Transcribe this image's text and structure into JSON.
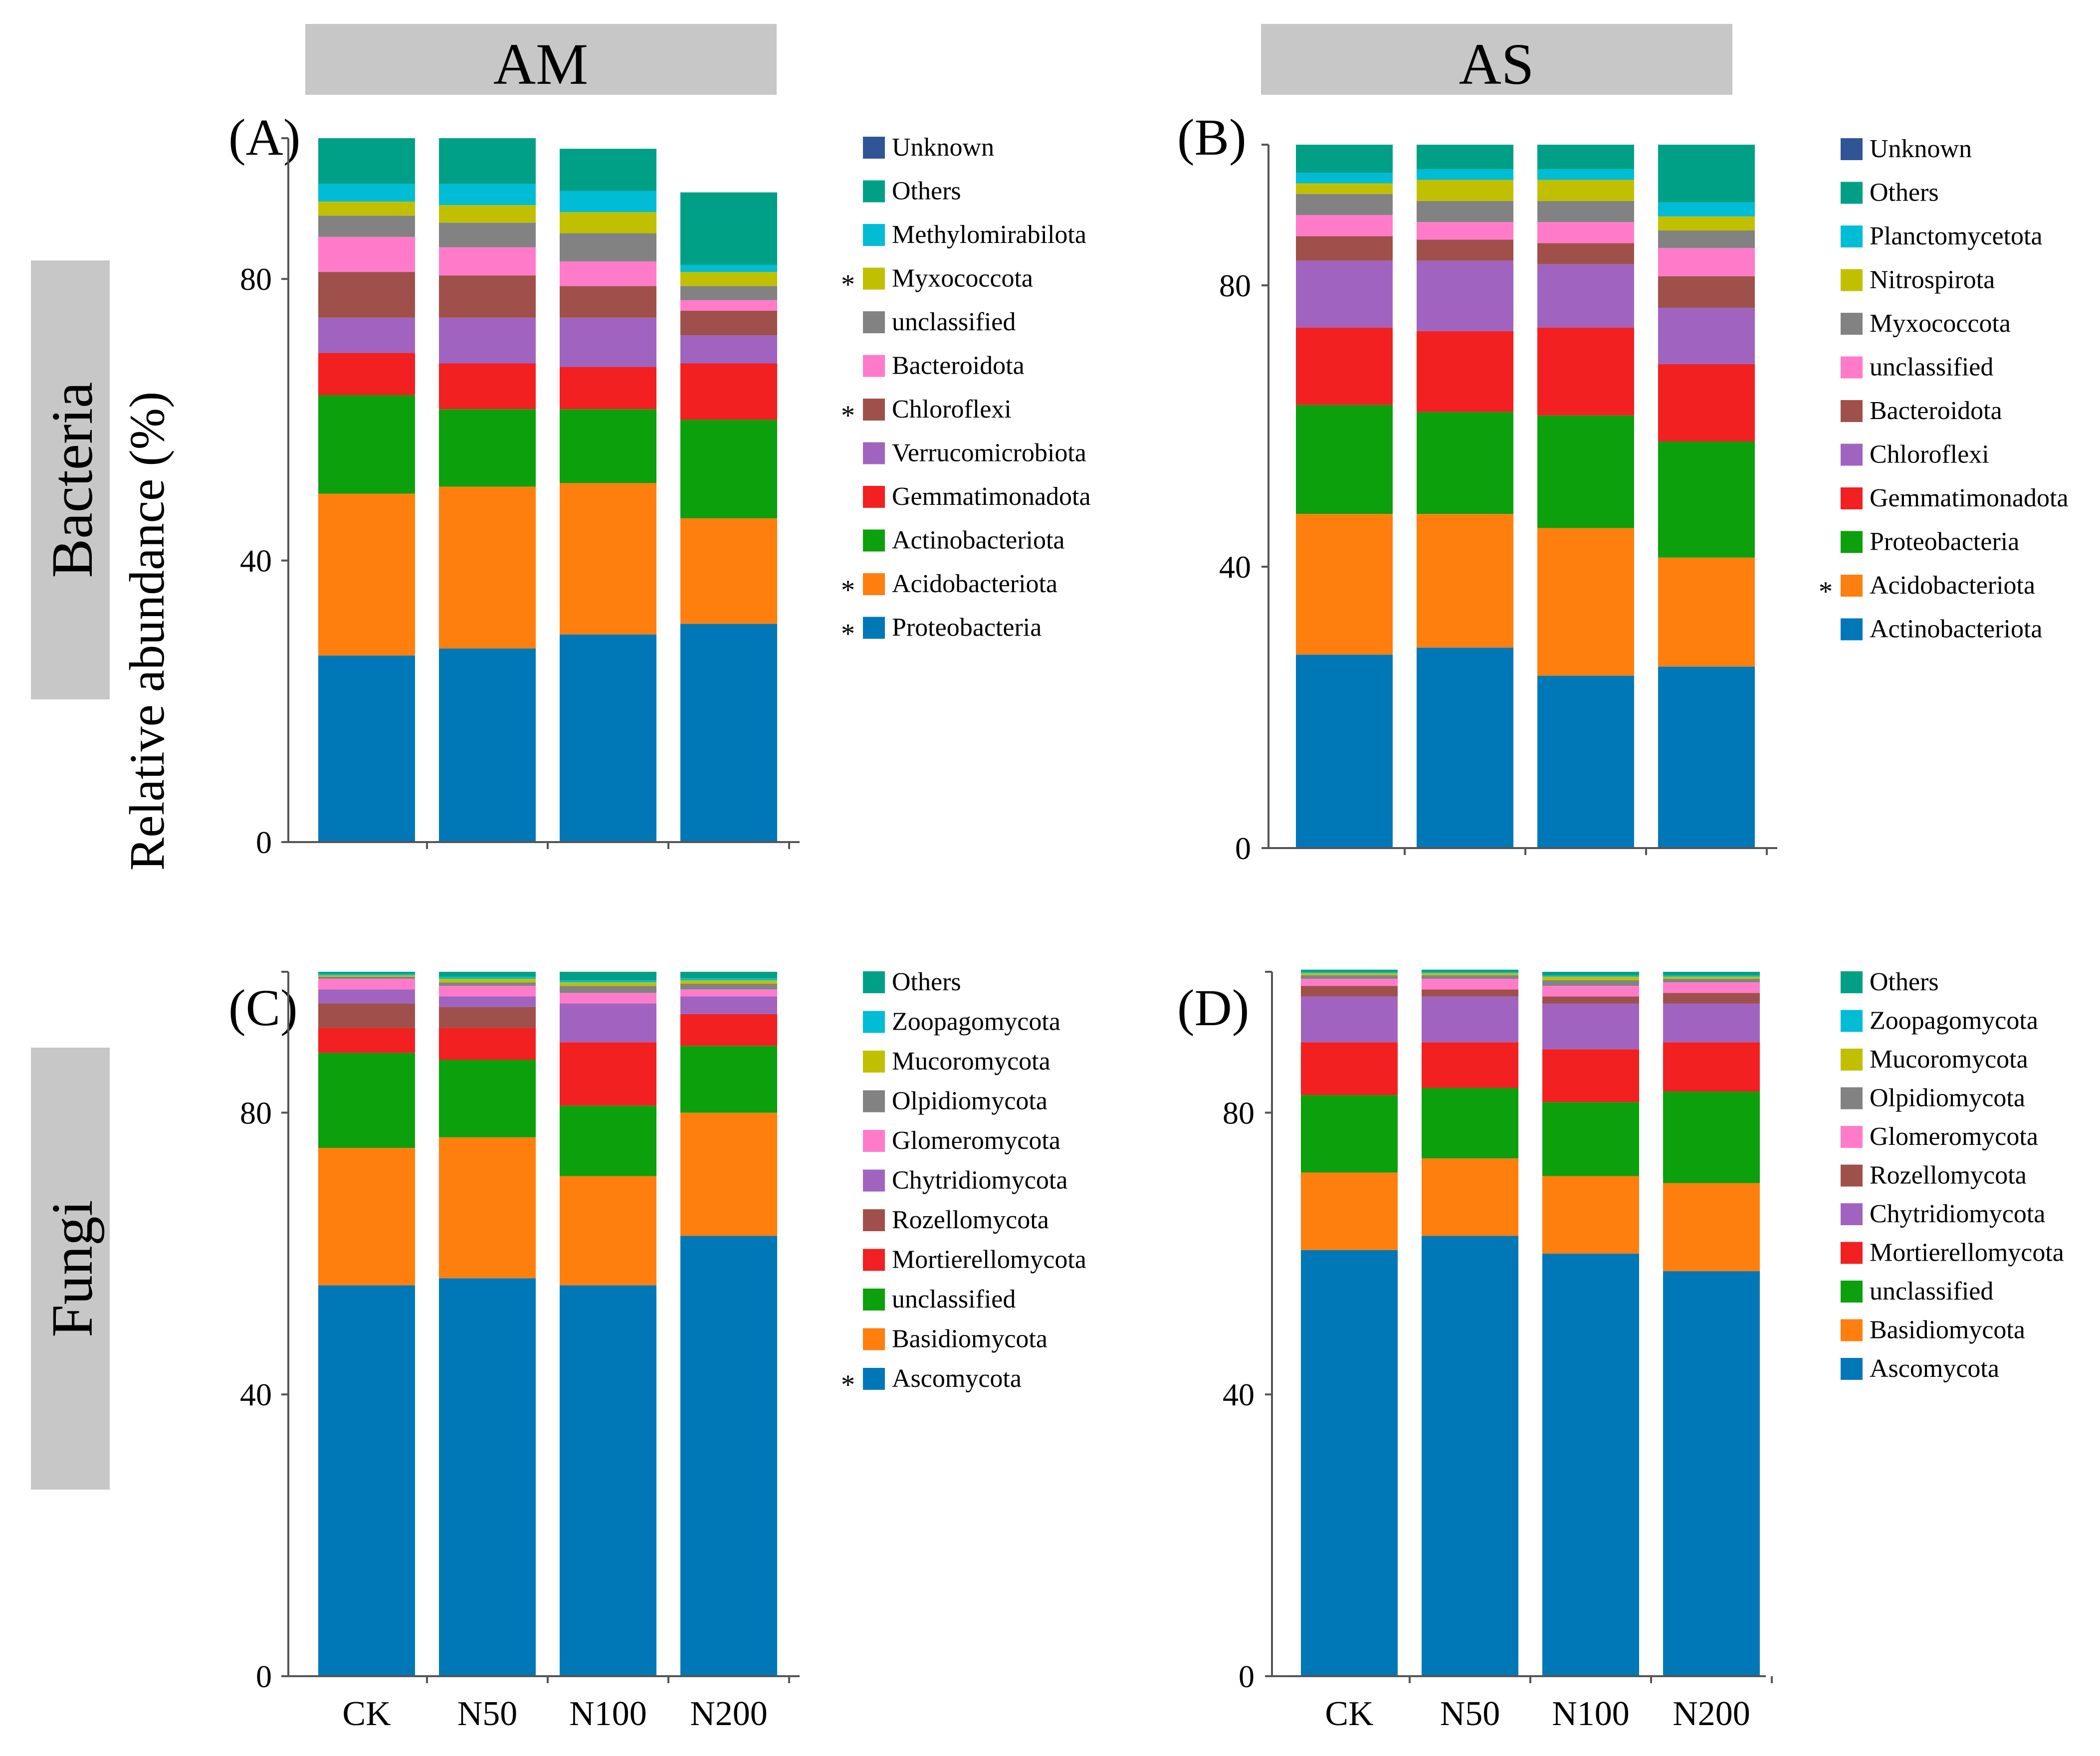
{
  "headers": {
    "left": "AM",
    "right": "AS"
  },
  "row_labels": {
    "top": "Bacteria",
    "bottom": "Fungi"
  },
  "y_axis_label": "Relative abundance (%)",
  "categories": [
    "CK",
    "N50",
    "N100",
    "N200"
  ],
  "y_ticks": [
    "0",
    "40",
    "80"
  ],
  "colors": {
    "Unknown": "#2f5597",
    "Others": "#00a087",
    "Methylomirabilota": "#00bcd4",
    "Planctomycetota": "#00bcd4",
    "Zoopagomycota": "#00bcd4",
    "Myxococcota_A": "#c1c000",
    "Nitrospirota": "#c1c000",
    "Mucoromycota": "#c1c000",
    "unclassified_gray": "#828282",
    "Myxococcota_B": "#828282",
    "Olpidiomycota": "#828282",
    "pink": "#ff7bca",
    "brown": "#a0504a",
    "purple": "#a064c0",
    "red": "#f22020",
    "green": "#0ca00c",
    "orange": "#ff7f0e",
    "blue": "#0078b8"
  },
  "chart_data": [
    {
      "panel": "(A)",
      "type": "stacked-bar",
      "group": "AM",
      "kingdom": "Bacteria",
      "ylim": [
        0,
        100
      ],
      "categories": [
        "CK",
        "N50",
        "N100",
        "N200"
      ],
      "series": [
        {
          "name": "Proteobacteria",
          "color": "#0078b8",
          "sig": "*",
          "values": [
            26.5,
            27.5,
            29.5,
            31
          ]
        },
        {
          "name": "Acidobacteriota",
          "color": "#ff7f0e",
          "sig": "*",
          "values": [
            23,
            23,
            21.5,
            15
          ]
        },
        {
          "name": "Actinobacteriota",
          "color": "#0ca00c",
          "sig": "",
          "values": [
            14,
            11,
            10.5,
            14
          ]
        },
        {
          "name": "Gemmatimonadota",
          "color": "#f22020",
          "sig": "",
          "values": [
            6,
            6.5,
            6,
            8
          ]
        },
        {
          "name": "Verrucomicrobiota",
          "color": "#a064c0",
          "sig": "",
          "values": [
            5,
            6.5,
            7,
            4
          ]
        },
        {
          "name": "Chloroflexi",
          "color": "#a0504a",
          "sig": "*",
          "values": [
            6.5,
            6,
            4.5,
            3.5
          ]
        },
        {
          "name": "Bacteroidota",
          "color": "#ff7bca",
          "sig": "",
          "values": [
            5,
            4,
            3.5,
            1.5
          ]
        },
        {
          "name": "unclassified",
          "color": "#828282",
          "sig": "",
          "values": [
            3,
            3.5,
            4,
            2
          ]
        },
        {
          "name": "Myxococcota",
          "color": "#c1c000",
          "sig": "*",
          "values": [
            2,
            2.5,
            3,
            2
          ]
        },
        {
          "name": "Methylomirabilota",
          "color": "#00bcd4",
          "sig": "",
          "values": [
            2.5,
            3,
            3,
            1
          ]
        },
        {
          "name": "Others",
          "color": "#00a087",
          "sig": "",
          "values": [
            6.5,
            6.5,
            6,
            10.3
          ]
        },
        {
          "name": "Unknown",
          "color": "#2f5597",
          "sig": "",
          "values": [
            0,
            0,
            0,
            0
          ]
        }
      ]
    },
    {
      "panel": "(B)",
      "type": "stacked-bar",
      "group": "AS",
      "kingdom": "Bacteria",
      "ylim": [
        0,
        100
      ],
      "categories": [
        "CK",
        "N50",
        "N100",
        "N200"
      ],
      "series": [
        {
          "name": "Actinobacteriota",
          "color": "#0078b8",
          "sig": "",
          "values": [
            27.5,
            28.5,
            24.5,
            25.8
          ]
        },
        {
          "name": "Acidobacteriota",
          "color": "#ff7f0e",
          "sig": "*",
          "values": [
            20,
            19,
            21,
            15.5
          ]
        },
        {
          "name": "Proteobacteria",
          "color": "#0ca00c",
          "sig": "",
          "values": [
            15.5,
            14.5,
            16,
            16.5
          ]
        },
        {
          "name": "Gemmatimonadota",
          "color": "#f22020",
          "sig": "",
          "values": [
            11,
            11.5,
            12.5,
            11
          ]
        },
        {
          "name": "Chloroflexi",
          "color": "#a064c0",
          "sig": "",
          "values": [
            9.5,
            10,
            9,
            8
          ]
        },
        {
          "name": "Bacteroidota",
          "color": "#a0504a",
          "sig": "",
          "values": [
            3.5,
            3,
            3,
            4.5
          ]
        },
        {
          "name": "unclassified",
          "color": "#ff7bca",
          "sig": "",
          "values": [
            3,
            2.5,
            3,
            4
          ]
        },
        {
          "name": "Myxococcota",
          "color": "#828282",
          "sig": "",
          "values": [
            3,
            3,
            3,
            2.5
          ]
        },
        {
          "name": "Nitrospirota",
          "color": "#c1c000",
          "sig": "",
          "values": [
            1.5,
            3,
            3,
            2
          ]
        },
        {
          "name": "Planctomycetota",
          "color": "#00bcd4",
          "sig": "",
          "values": [
            1.5,
            1.5,
            1.5,
            2
          ]
        },
        {
          "name": "Others",
          "color": "#00a087",
          "sig": "",
          "values": [
            4,
            3.5,
            3.5,
            8.2
          ]
        },
        {
          "name": "Unknown",
          "color": "#2f5597",
          "sig": "",
          "values": [
            0,
            0,
            0,
            0
          ]
        }
      ]
    },
    {
      "panel": "(C)",
      "type": "stacked-bar",
      "group": "AM",
      "kingdom": "Fungi",
      "ylim": [
        0,
        100
      ],
      "categories": [
        "CK",
        "N50",
        "N100",
        "N200"
      ],
      "series": [
        {
          "name": "Ascomycota",
          "color": "#0078b8",
          "sig": "*",
          "values": [
            55.5,
            56.5,
            55.5,
            62.5
          ]
        },
        {
          "name": "Basidiomycota",
          "color": "#ff7f0e",
          "sig": "",
          "values": [
            19.5,
            20,
            15.5,
            17.5
          ]
        },
        {
          "name": "unclassified",
          "color": "#0ca00c",
          "sig": "",
          "values": [
            13.5,
            11,
            10,
            9.5
          ]
        },
        {
          "name": "Mortierellomycota",
          "color": "#f22020",
          "sig": "",
          "values": [
            3.5,
            4.5,
            9,
            4.5
          ]
        },
        {
          "name": "Rozellomycota",
          "color": "#a0504a",
          "sig": "",
          "values": [
            3.5,
            3,
            0,
            0
          ]
        },
        {
          "name": "Chytridiomycota",
          "color": "#a064c0",
          "sig": "",
          "values": [
            2,
            1.5,
            5.5,
            2.5
          ]
        },
        {
          "name": "Glomeromycota",
          "color": "#ff7bca",
          "sig": "",
          "values": [
            1.5,
            1.5,
            1.5,
            1
          ]
        },
        {
          "name": "Olpidiomycota",
          "color": "#828282",
          "sig": "",
          "values": [
            0.3,
            0.5,
            1,
            0.8
          ]
        },
        {
          "name": "Mucoromycota",
          "color": "#c1c000",
          "sig": "",
          "values": [
            0.2,
            0.5,
            0.5,
            0.5
          ]
        },
        {
          "name": "Zoopagomycota",
          "color": "#00bcd4",
          "sig": "",
          "values": [
            0.2,
            0.3,
            0.3,
            0.3
          ]
        },
        {
          "name": "Others",
          "color": "#00a087",
          "sig": "",
          "values": [
            0.3,
            0.7,
            1.2,
            0.9
          ]
        }
      ]
    },
    {
      "panel": "(D)",
      "type": "stacked-bar",
      "group": "AS",
      "kingdom": "Fungi",
      "ylim": [
        0,
        100
      ],
      "categories": [
        "CK",
        "N50",
        "N100",
        "N200"
      ],
      "series": [
        {
          "name": "Ascomycota",
          "color": "#0078b8",
          "sig": "",
          "values": [
            60.5,
            62.5,
            60,
            57.5
          ]
        },
        {
          "name": "Basidiomycota",
          "color": "#ff7f0e",
          "sig": "",
          "values": [
            11,
            11,
            11,
            12.5
          ]
        },
        {
          "name": "unclassified",
          "color": "#0ca00c",
          "sig": "",
          "values": [
            11,
            10,
            10.5,
            13
          ]
        },
        {
          "name": "Mortierellomycota",
          "color": "#f22020",
          "sig": "",
          "values": [
            7.5,
            6.5,
            7.5,
            7
          ]
        },
        {
          "name": "Chytridiomycota",
          "color": "#a064c0",
          "sig": "",
          "values": [
            6.5,
            6.5,
            6.5,
            5.5
          ]
        },
        {
          "name": "Rozellomycota",
          "color": "#a0504a",
          "sig": "",
          "values": [
            1.5,
            1,
            1,
            1.5
          ]
        },
        {
          "name": "Glomeromycota",
          "color": "#ff7bca",
          "sig": "",
          "values": [
            1,
            1.5,
            1.5,
            1.5
          ]
        },
        {
          "name": "Olpidiomycota",
          "color": "#828282",
          "sig": "",
          "values": [
            0.5,
            0.5,
            0.8,
            0.5
          ]
        },
        {
          "name": "Mucoromycota",
          "color": "#c1c000",
          "sig": "",
          "values": [
            0.3,
            0.3,
            0.5,
            0.3
          ]
        },
        {
          "name": "Zoopagomycota",
          "color": "#00bcd4",
          "sig": "",
          "values": [
            0.2,
            0.2,
            0.2,
            0.2
          ]
        },
        {
          "name": "Others",
          "color": "#00a087",
          "sig": "",
          "values": [
            0.3,
            0.3,
            0.5,
            0.5
          ]
        }
      ]
    }
  ]
}
